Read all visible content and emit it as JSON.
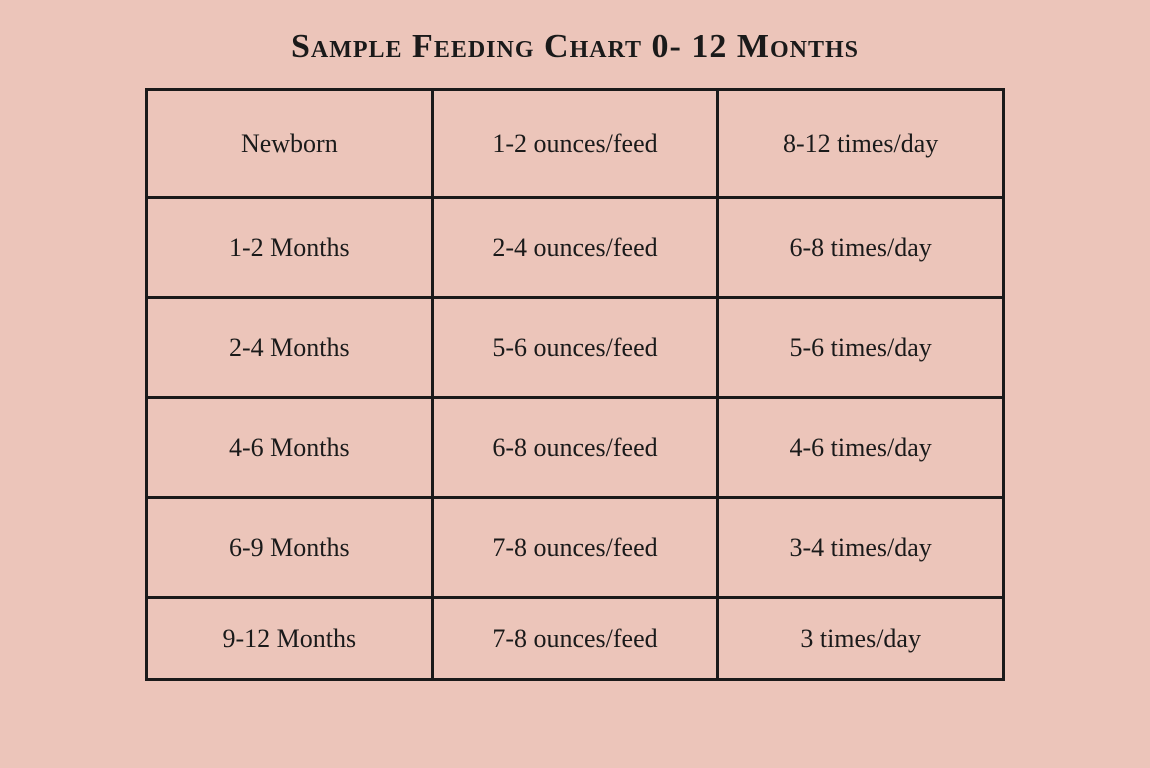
{
  "title": "Sample Feeding Chart 0- 12 Months",
  "background_color": "#ecc5ba",
  "border_color": "#1a1a1a",
  "text_color": "#1a1a1a",
  "title_fontsize": 34,
  "cell_fontsize": 26,
  "table": {
    "columns": [
      "age",
      "amount",
      "frequency"
    ],
    "column_count": 3,
    "row_count": 6,
    "border_width": 3,
    "rows": [
      {
        "age": "Newborn",
        "amount": "1-2 ounces/feed",
        "frequency": "8-12 times/day"
      },
      {
        "age": "1-2 Months",
        "amount": "2-4 ounces/feed",
        "frequency": "6-8 times/day"
      },
      {
        "age": "2-4 Months",
        "amount": "5-6 ounces/feed",
        "frequency": "5-6 times/day"
      },
      {
        "age": "4-6 Months",
        "amount": "6-8 ounces/feed",
        "frequency": "4-6 times/day"
      },
      {
        "age": "6-9 Months",
        "amount": "7-8 ounces/feed",
        "frequency": "3-4 times/day"
      },
      {
        "age": "9-12 Months",
        "amount": "7-8 ounces/feed",
        "frequency": "3 times/day"
      }
    ]
  }
}
